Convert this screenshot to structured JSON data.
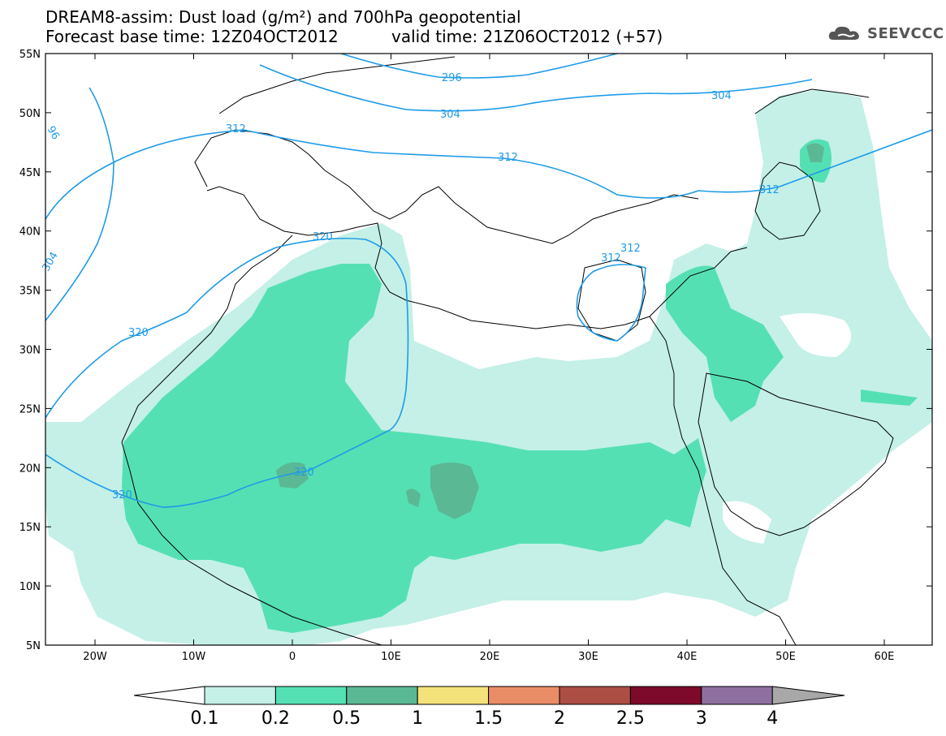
{
  "title": {
    "line1": "DREAM8-assim: Dust load (g/m²) and 700hPa geopotential",
    "line2_base": "Forecast base time: 12Z04OCT2012",
    "line2_valid": "valid time: 21Z06OCT2012 (+57)"
  },
  "logo": {
    "text": "SEEVCCC",
    "icon": "cloud-icon"
  },
  "axes": {
    "lat_labels": [
      "55N",
      "50N",
      "45N",
      "40N",
      "35N",
      "30N",
      "25N",
      "20N",
      "15N",
      "10N",
      "5N"
    ],
    "lon_labels": [
      "20W",
      "10W",
      "0",
      "10E",
      "20E",
      "30E",
      "40E",
      "50E",
      "60E"
    ]
  },
  "contour_labels": [
    "296",
    "304",
    "304",
    "312",
    "312",
    "312",
    "312",
    "312",
    "304",
    "320",
    "320",
    "320",
    "320",
    "96"
  ],
  "colorbar": {
    "ticks": [
      "0.1",
      "0.2",
      "0.5",
      "1",
      "1.5",
      "2",
      "2.5",
      "3",
      "4"
    ],
    "colors": [
      "#c4f0e7",
      "#55e0b3",
      "#5bb894",
      "#f3e27a",
      "#e98d67",
      "#ad4e44",
      "#7d0a2b",
      "#8f6fa0"
    ],
    "lower_extend_color": "#ffffff",
    "upper_extend_color": "#a8a8a8"
  },
  "colors": {
    "geopotential_contour": "#1e9be8",
    "dust_low": "#c4f0e7",
    "dust_mid": "#55e0b3",
    "dust_high": "#5bb894"
  }
}
